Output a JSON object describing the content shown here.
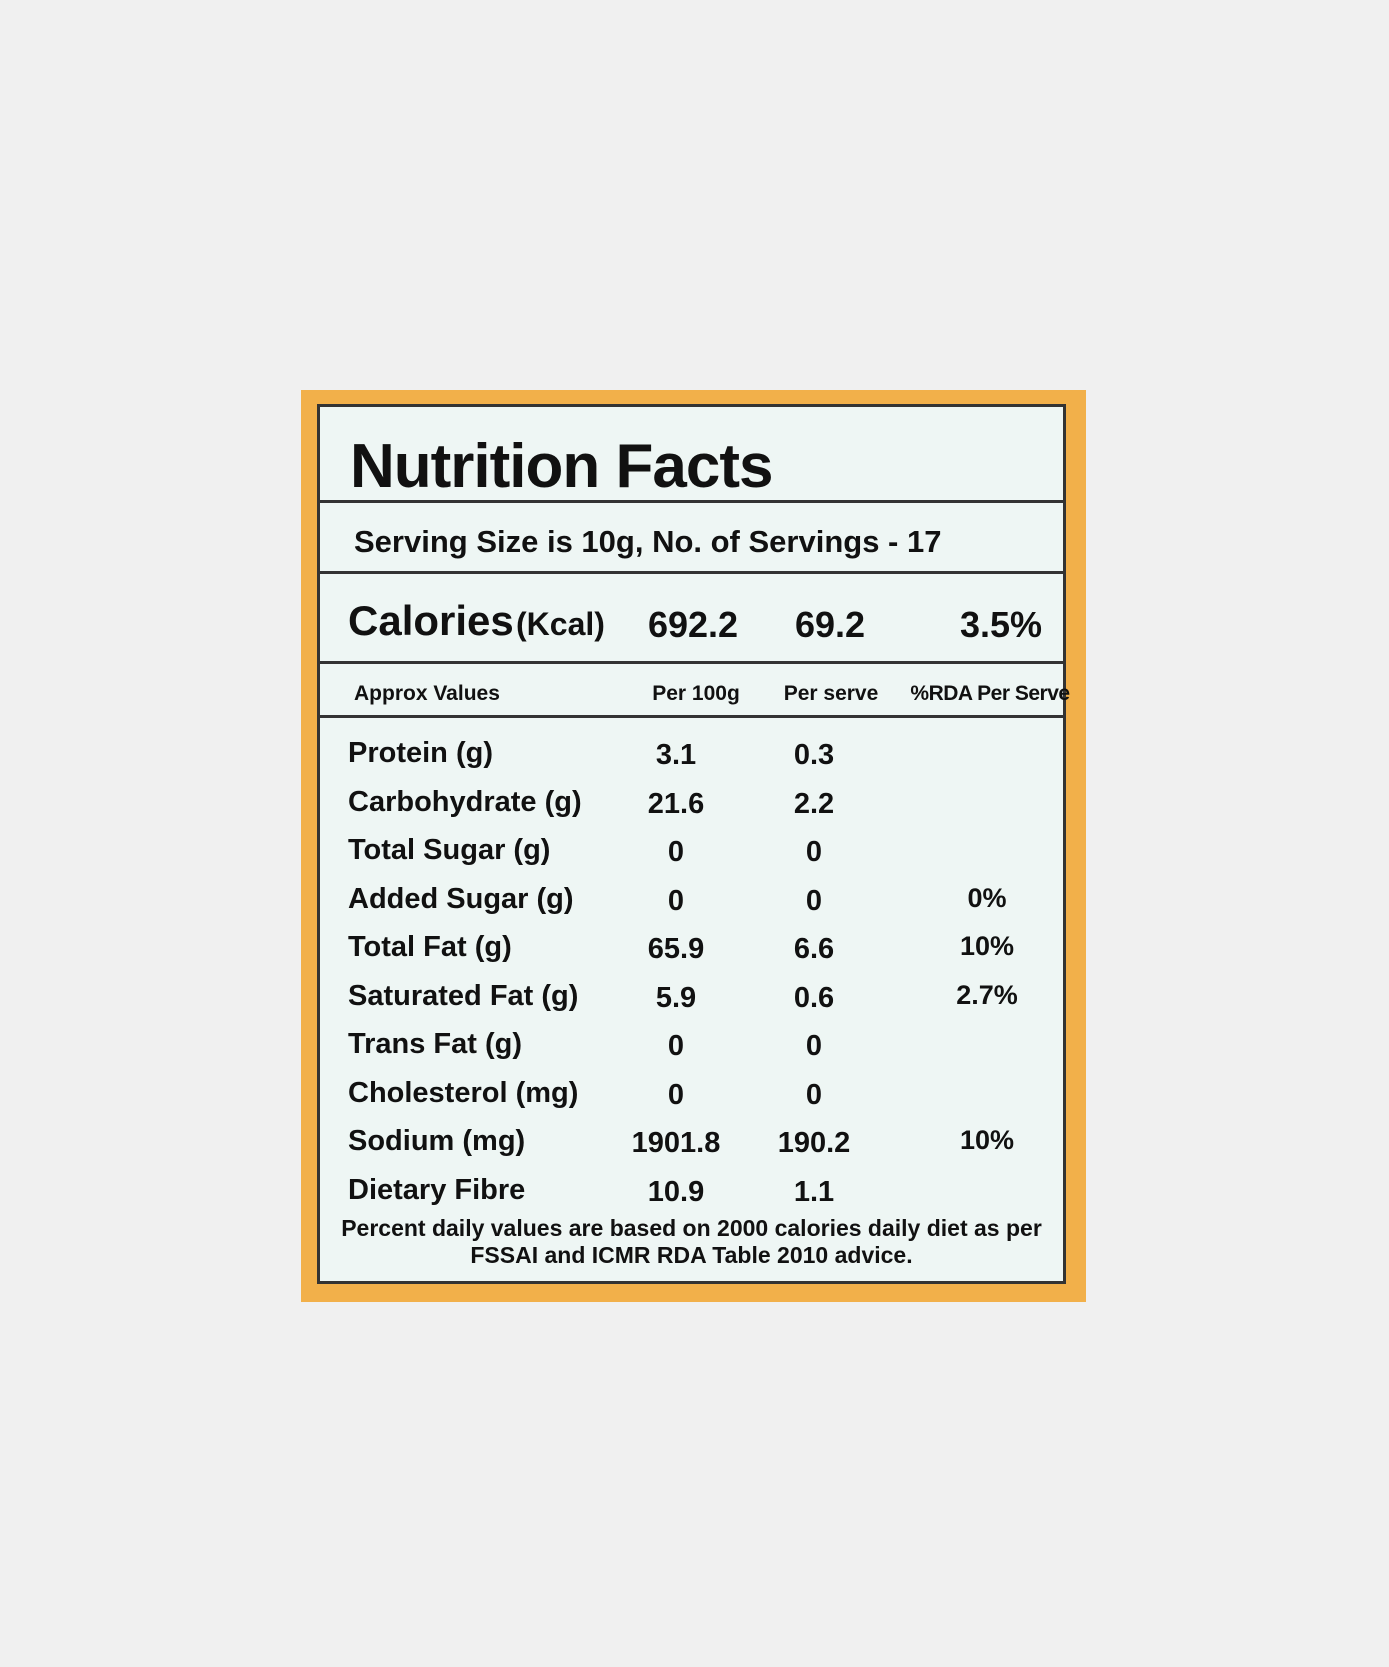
{
  "label": {
    "title": "Nutrition Facts",
    "serving": "Serving Size is 10g,  No. of Servings - 17",
    "calories": {
      "label": "Calories",
      "unit": "(Kcal)",
      "per_100g": "692.2",
      "per_serve": "69.2",
      "rda": "3.5%"
    },
    "header": {
      "name": "Approx Values",
      "per_100g": "Per 100g",
      "per_serve": "Per serve",
      "rda": "%RDA Per Serve"
    },
    "rows": [
      {
        "name": "Protein (g)",
        "per_100g": "3.1",
        "per_serve": "0.3"
      },
      {
        "name": "Carbohydrate (g)",
        "per_100g": "21.6",
        "per_serve": "2.2"
      },
      {
        "name": "Total Sugar (g)",
        "per_100g": "0",
        "per_serve": "0"
      },
      {
        "name": "Added Sugar (g)",
        "per_100g": "0",
        "per_serve": "0",
        "rda": "0%"
      },
      {
        "name": "Total Fat (g)",
        "per_100g": "65.9",
        "per_serve": "6.6",
        "rda": "10%"
      },
      {
        "name": "Saturated Fat (g)",
        "per_100g": "5.9",
        "per_serve": "0.6",
        "rda": "2.7%"
      },
      {
        "name": "Trans Fat (g)",
        "per_100g": "0",
        "per_serve": "0"
      },
      {
        "name": "Cholesterol (mg)",
        "per_100g": "0",
        "per_serve": "0"
      },
      {
        "name": "Sodium (mg)",
        "per_100g": "1901.8",
        "per_serve": "190.2",
        "rda": "10%"
      },
      {
        "name": "Dietary Fibre",
        "per_100g": "10.9",
        "per_serve": "1.1"
      }
    ],
    "footnote": "Percent daily values are based on 2000 calories daily diet as per FSSAI and ICMR RDA Table 2010 advice."
  }
}
